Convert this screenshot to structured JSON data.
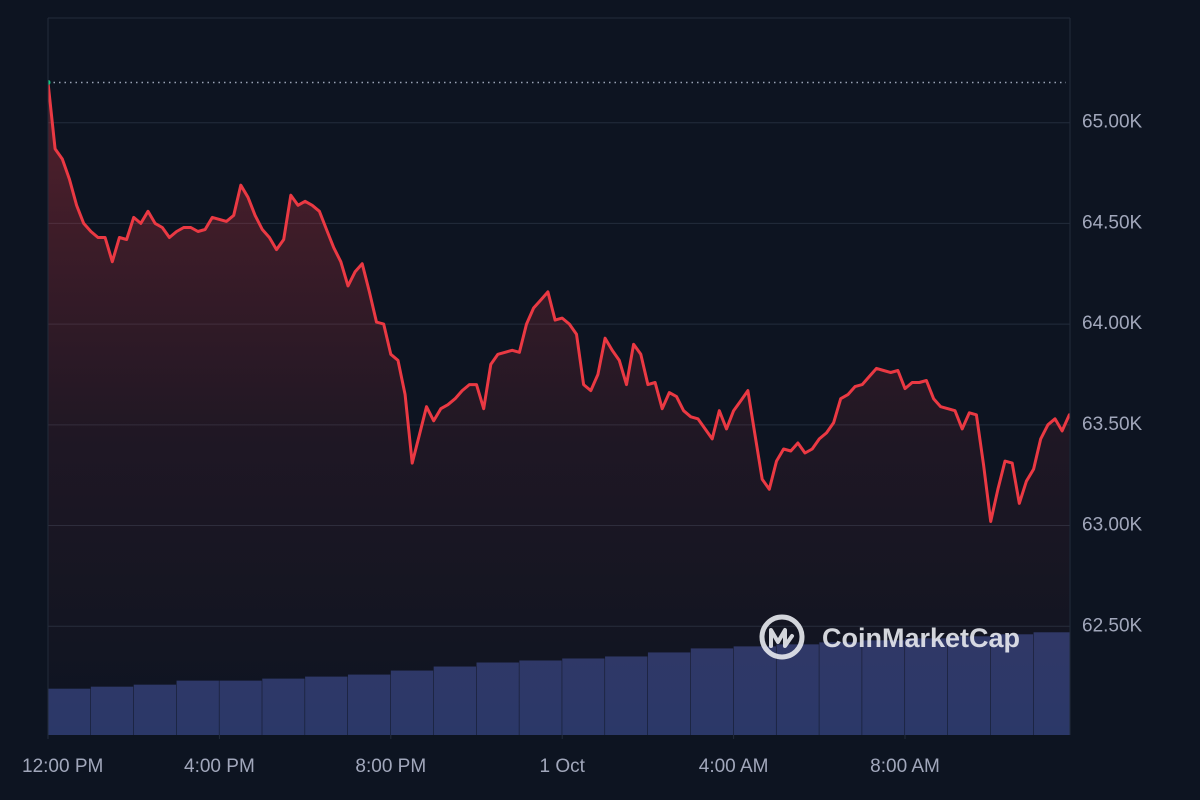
{
  "chart_data": {
    "type": "line",
    "watermark": "CoinMarketCap",
    "reference": 65200,
    "reference_color": "#9aa3b5",
    "start_color": "#16c784",
    "grid": true,
    "xlim": [
      0,
      1431
    ],
    "xticks": [
      {
        "value": 0,
        "label": "12:00 PM"
      },
      {
        "value": 240,
        "label": "4:00 PM"
      },
      {
        "value": 480,
        "label": "8:00 PM"
      },
      {
        "value": 720,
        "label": "1 Oct"
      },
      {
        "value": 960,
        "label": "4:00 AM"
      },
      {
        "value": 1200,
        "label": "8:00 AM"
      }
    ],
    "ylim": [
      61960,
      65520
    ],
    "yticks": [
      {
        "value": 62500,
        "label": "62.50K"
      },
      {
        "value": 63000,
        "label": "63.00K"
      },
      {
        "value": 63500,
        "label": "63.50K"
      },
      {
        "value": 64000,
        "label": "64.00K"
      },
      {
        "value": 64500,
        "label": "64.50K"
      },
      {
        "value": 65000,
        "label": "65.00K"
      }
    ],
    "series": [
      {
        "type": "line",
        "color": "#ea3943",
        "x": [
          0,
          10,
          20,
          30,
          40,
          50,
          60,
          70,
          80,
          90,
          100,
          110,
          120,
          130,
          140,
          150,
          160,
          170,
          180,
          190,
          200,
          210,
          220,
          230,
          240,
          250,
          260,
          270,
          280,
          290,
          300,
          310,
          320,
          330,
          340,
          350,
          360,
          370,
          380,
          390,
          400,
          410,
          420,
          430,
          440,
          450,
          460,
          470,
          480,
          490,
          500,
          510,
          520,
          530,
          540,
          550,
          560,
          570,
          580,
          590,
          600,
          610,
          620,
          630,
          640,
          650,
          660,
          670,
          680,
          690,
          700,
          710,
          720,
          730,
          740,
          750,
          760,
          770,
          780,
          790,
          800,
          810,
          820,
          830,
          840,
          850,
          860,
          870,
          880,
          890,
          900,
          910,
          920,
          930,
          940,
          950,
          960,
          970,
          980,
          990,
          1000,
          1010,
          1020,
          1030,
          1040,
          1050,
          1060,
          1070,
          1080,
          1090,
          1100,
          1110,
          1120,
          1130,
          1140,
          1150,
          1160,
          1170,
          1180,
          1190,
          1200,
          1210,
          1220,
          1230,
          1240,
          1250,
          1260,
          1270,
          1280,
          1290,
          1300,
          1310,
          1320,
          1330,
          1340,
          1350,
          1360,
          1370,
          1380,
          1390,
          1400,
          1410,
          1420,
          1430
        ],
        "values": [
          65200,
          64870,
          64820,
          64720,
          64590,
          64500,
          64460,
          64430,
          64430,
          64310,
          64430,
          64420,
          64530,
          64500,
          64560,
          64500,
          64480,
          64430,
          64460,
          64480,
          64480,
          64460,
          64470,
          64530,
          64520,
          64510,
          64540,
          64690,
          64630,
          64540,
          64470,
          64430,
          64370,
          64420,
          64640,
          64590,
          64610,
          64590,
          64560,
          64470,
          64380,
          64310,
          64190,
          64260,
          64300,
          64160,
          64010,
          64000,
          63850,
          63820,
          63650,
          63310,
          63450,
          63590,
          63520,
          63580,
          63600,
          63630,
          63670,
          63700,
          63700,
          63580,
          63800,
          63850,
          63860,
          63870,
          63860,
          64000,
          64080,
          64120,
          64160,
          64020,
          64030,
          64000,
          63950,
          63700,
          63670,
          63750,
          63930,
          63870,
          63820,
          63700,
          63900,
          63850,
          63700,
          63710,
          63580,
          63660,
          63640,
          63570,
          63540,
          63530,
          63480,
          63430,
          63570,
          63480,
          63570,
          63620,
          63670,
          63450,
          63230,
          63180,
          63320,
          63380,
          63370,
          63410,
          63360,
          63380,
          63430,
          63460,
          63510,
          63630,
          63650,
          63690,
          63700,
          63740,
          63780,
          63770,
          63760,
          63770,
          63680,
          63710,
          63710,
          63720,
          63630,
          63590,
          63580,
          63570,
          63480,
          63560,
          63550,
          63300,
          63020,
          63180,
          63320,
          63310,
          63110,
          63220,
          63280,
          63430,
          63500,
          63530,
          63470,
          63550
        ]
      },
      {
        "type": "bar",
        "color": "#2b3868",
        "width": 60,
        "x": [
          0,
          60,
          120,
          180,
          240,
          300,
          360,
          420,
          480,
          540,
          600,
          660,
          720,
          780,
          840,
          900,
          960,
          1020,
          1080,
          1140,
          1200,
          1260,
          1320,
          1380
        ],
        "values": [
          62190,
          62200,
          62210,
          62230,
          62230,
          62240,
          62250,
          62260,
          62280,
          62300,
          62320,
          62330,
          62340,
          62350,
          62370,
          62390,
          62400,
          62410,
          62420,
          62430,
          62440,
          62450,
          62460,
          62470
        ]
      }
    ]
  }
}
